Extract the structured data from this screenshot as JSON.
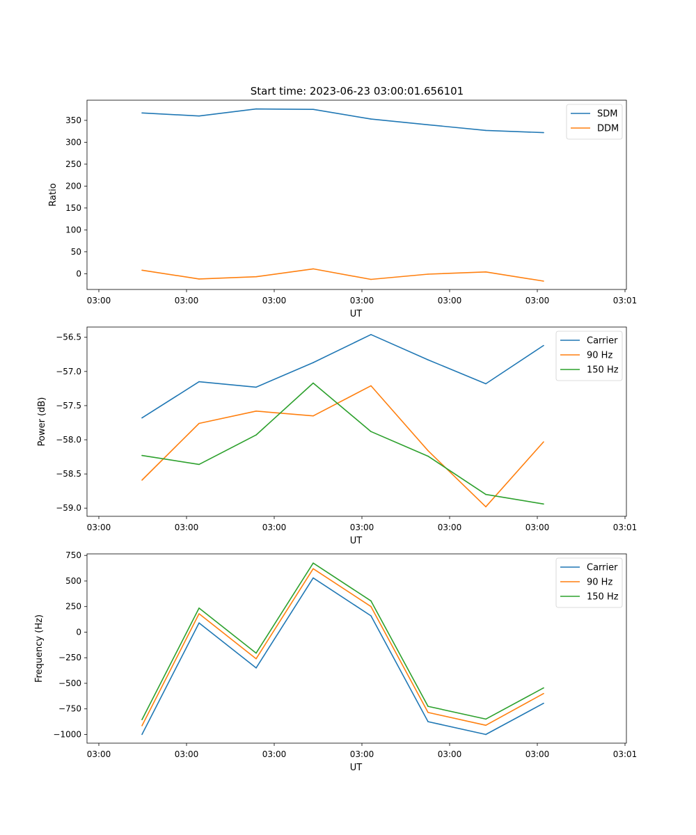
{
  "figure": {
    "title": "Start time: 2023-06-23 03:00:01.656101"
  },
  "chart_data": [
    {
      "type": "line",
      "xlabel": "UT",
      "ylabel": "Ratio",
      "x_tick_labels": [
        "03:00",
        "03:00",
        "03:00",
        "03:00",
        "03:00",
        "03:00",
        "03:01"
      ],
      "y_ticks": [
        0,
        50,
        100,
        150,
        200,
        250,
        300,
        350
      ],
      "ylim": [
        -36,
        396
      ],
      "grid": false,
      "legend": "top-right",
      "series": [
        {
          "name": "SDM",
          "color": "#1f77b4",
          "values": [
            367,
            360,
            376,
            375,
            353,
            340,
            327,
            322
          ]
        },
        {
          "name": "DDM",
          "color": "#ff7f0e",
          "values": [
            8,
            -12,
            -7,
            11,
            -13,
            -1,
            4,
            -17
          ]
        }
      ]
    },
    {
      "type": "line",
      "xlabel": "UT",
      "ylabel": "Power (dB)",
      "x_tick_labels": [
        "03:00",
        "03:00",
        "03:00",
        "03:00",
        "03:00",
        "03:00",
        "03:01"
      ],
      "y_ticks": [
        -59.0,
        -58.5,
        -58.0,
        -57.5,
        -57.0,
        -56.5
      ],
      "y_tick_labels": [
        "−59.0",
        "−58.5",
        "−58.0",
        "−57.5",
        "−57.0",
        "−56.5"
      ],
      "ylim": [
        -59.12,
        -56.35
      ],
      "grid": false,
      "legend": "top-right",
      "series": [
        {
          "name": "Carrier",
          "color": "#1f77b4",
          "values": [
            -57.68,
            -57.15,
            -57.23,
            -56.87,
            -56.46,
            -56.83,
            -57.18,
            -56.62
          ]
        },
        {
          "name": "90 Hz",
          "color": "#ff7f0e",
          "values": [
            -58.59,
            -57.76,
            -57.58,
            -57.65,
            -57.21,
            -58.16,
            -58.98,
            -58.03
          ]
        },
        {
          "name": "150 Hz",
          "color": "#2ca02c",
          "values": [
            -58.23,
            -58.36,
            -57.93,
            -57.17,
            -57.88,
            -58.24,
            -58.8,
            -58.94
          ]
        }
      ]
    },
    {
      "type": "line",
      "xlabel": "UT",
      "ylabel": "Frequency (Hz)",
      "x_tick_labels": [
        "03:00",
        "03:00",
        "03:00",
        "03:00",
        "03:00",
        "03:00",
        "03:01"
      ],
      "y_ticks": [
        -1000,
        -750,
        -500,
        -250,
        0,
        250,
        500,
        750
      ],
      "y_tick_labels": [
        "−1000",
        "−750",
        "−500",
        "−250",
        "0",
        "250",
        "500",
        "750"
      ],
      "ylim": [
        -1085,
        765
      ],
      "grid": false,
      "legend": "top-right",
      "series": [
        {
          "name": "Carrier",
          "color": "#1f77b4",
          "values": [
            -1000,
            90,
            -350,
            530,
            160,
            -875,
            -1000,
            -695
          ]
        },
        {
          "name": "90 Hz",
          "color": "#ff7f0e",
          "values": [
            -915,
            180,
            -260,
            620,
            250,
            -785,
            -910,
            -600
          ]
        },
        {
          "name": "150 Hz",
          "color": "#2ca02c",
          "values": [
            -855,
            235,
            -205,
            675,
            305,
            -725,
            -850,
            -545
          ]
        }
      ]
    }
  ]
}
